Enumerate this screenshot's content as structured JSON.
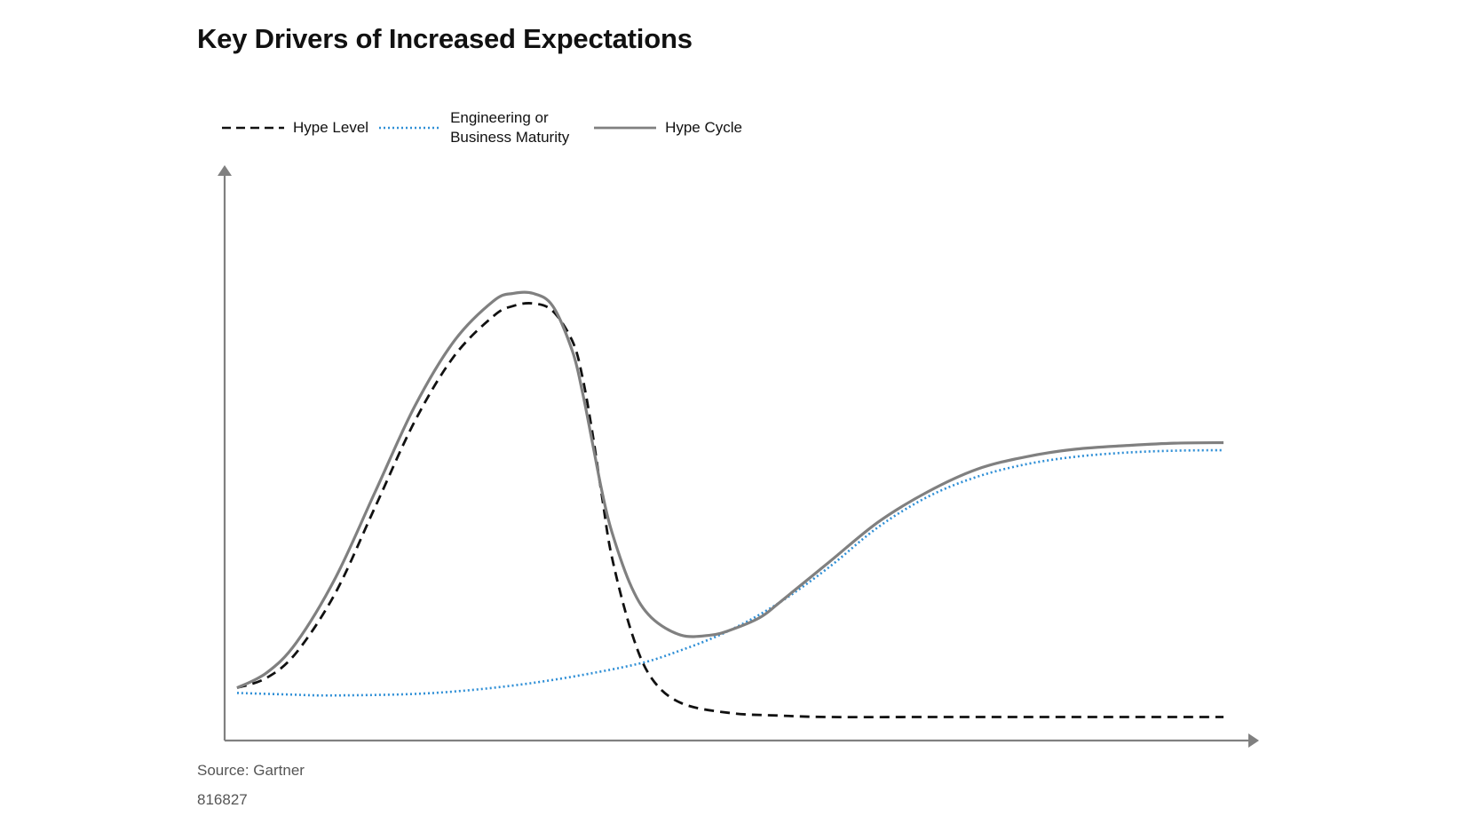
{
  "chart_data": {
    "type": "line",
    "title": "Key Drivers of Increased Expectations",
    "xlabel": "",
    "ylabel": "",
    "xlim": [
      0,
      100
    ],
    "ylim": [
      0,
      100
    ],
    "grid": false,
    "legend_position": "top-left",
    "series": [
      {
        "name": "Hype Level",
        "style": "dashed",
        "color": "#111111",
        "x": [
          0,
          3,
          6,
          10,
          14,
          18,
          22,
          26,
          28,
          30,
          32,
          34,
          35,
          36,
          37,
          38,
          40,
          42,
          45,
          50,
          55,
          60,
          70,
          80,
          90,
          100
        ],
        "y": [
          8,
          10,
          15,
          27,
          44,
          61,
          74,
          82,
          84,
          84.5,
          83,
          77,
          70,
          59,
          46,
          34,
          19,
          10,
          5,
          3,
          2.5,
          2.2,
          2.2,
          2.2,
          2.2,
          2.2
        ]
      },
      {
        "name": "Engineering or Business Maturity",
        "style": "dotted",
        "color": "#2f8fd6",
        "x": [
          0,
          5,
          10,
          20,
          30,
          40,
          45,
          50,
          55,
          60,
          65,
          70,
          75,
          80,
          85,
          90,
          95,
          100
        ],
        "y": [
          7,
          6.7,
          6.5,
          7,
          9,
          12.5,
          15.5,
          19.5,
          25,
          32,
          40,
          46,
          50,
          52.5,
          54,
          54.8,
          55.2,
          55.3
        ]
      },
      {
        "name": "Hype Cycle",
        "style": "solid",
        "color": "#808080",
        "x": [
          0,
          3,
          6,
          10,
          14,
          18,
          22,
          26,
          28,
          30,
          32,
          34,
          35,
          36,
          37,
          38,
          40,
          42,
          45,
          48,
          50,
          53,
          55,
          60,
          65,
          70,
          75,
          80,
          85,
          90,
          95,
          100
        ],
        "y": [
          8,
          11,
          17,
          30,
          47,
          64,
          77,
          85,
          86.5,
          86.5,
          84,
          75,
          67,
          57,
          47,
          39,
          28,
          22,
          18.5,
          18.5,
          19.5,
          22,
          25,
          33,
          41,
          47,
          51.5,
          54,
          55.5,
          56.2,
          56.7,
          56.8
        ]
      }
    ]
  },
  "footer": {
    "source": "Source: Gartner",
    "doc_id": "816827"
  }
}
